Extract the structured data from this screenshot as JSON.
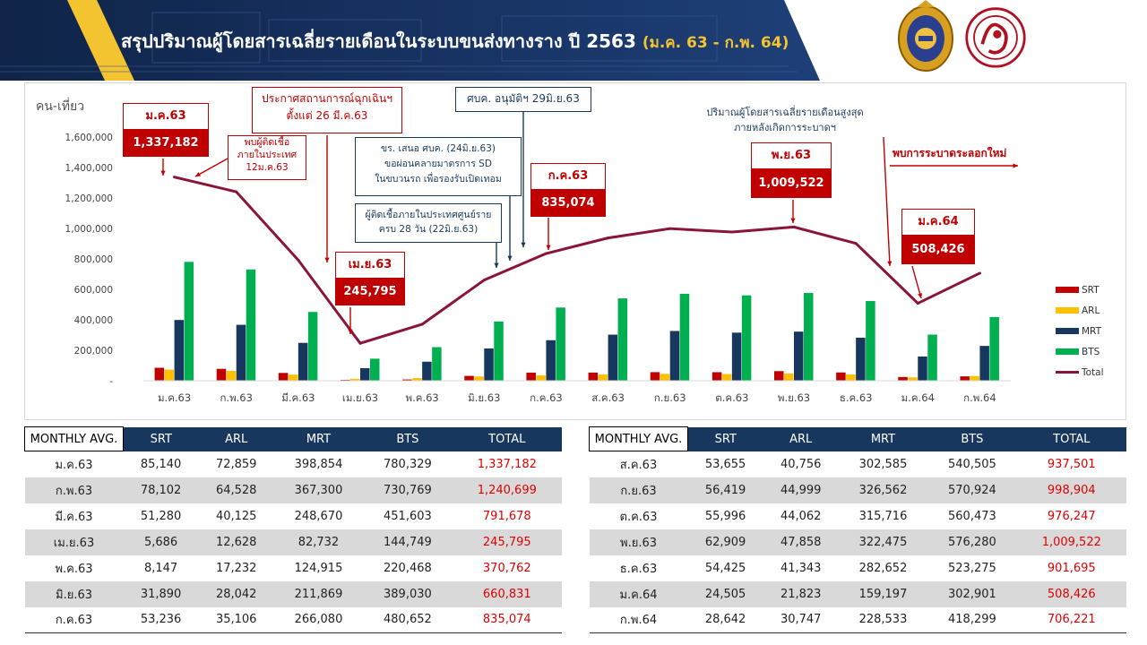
{
  "header": {
    "title": "สรุปปริมาณผู้โดยสารเฉลี่ยรายเดือนในระบบขนส่งทางราง ปี 2563",
    "subtitle": "(ม.ค. 63 - ก.พ. 64)",
    "logos": [
      "ministry-seal",
      "drt-seal"
    ]
  },
  "chart_data": {
    "type": "bar",
    "ylabel": "คน-เที่ยว",
    "ylim": [
      0,
      1600000
    ],
    "yticks": [
      "-",
      "200,000",
      "400,000",
      "600,000",
      "800,000",
      "1,000,000",
      "1,200,000",
      "1,400,000",
      "1,600,000"
    ],
    "categories": [
      "ม.ค.63",
      "ก.พ.63",
      "มี.ค.63",
      "เม.ย.63",
      "พ.ค.63",
      "มิ.ย.63",
      "ก.ค.63",
      "ส.ค.63",
      "ก.ย.63",
      "ต.ค.63",
      "พ.ย.63",
      "ธ.ค.63",
      "ม.ค.64",
      "ก.พ.64"
    ],
    "series": [
      {
        "name": "SRT",
        "color": "#c00000",
        "values": [
          85140,
          78102,
          51280,
          5686,
          8147,
          31890,
          53236,
          53655,
          56419,
          55996,
          62909,
          54425,
          24505,
          28642
        ]
      },
      {
        "name": "ARL",
        "color": "#ffc000",
        "values": [
          72859,
          64528,
          40125,
          12628,
          17232,
          28042,
          35106,
          40756,
          44999,
          44062,
          47858,
          41343,
          21823,
          30747
        ]
      },
      {
        "name": "MRT",
        "color": "#17375e",
        "values": [
          398854,
          367300,
          248670,
          82732,
          124915,
          211869,
          266080,
          302585,
          326562,
          315716,
          322475,
          282652,
          159197,
          228533
        ]
      },
      {
        "name": "BTS",
        "color": "#00b050",
        "values": [
          780329,
          730769,
          451603,
          144749,
          220468,
          389030,
          480652,
          540505,
          570924,
          560473,
          576280,
          523275,
          302901,
          418299
        ]
      },
      {
        "name": "Total",
        "color": "#8b1538",
        "type": "line",
        "values": [
          1337182,
          1240699,
          791678,
          245795,
          370762,
          660831,
          835074,
          937501,
          998904,
          976247,
          1009522,
          901695,
          508426,
          706221
        ]
      }
    ],
    "legend": "right",
    "callouts": [
      {
        "label": "ม.ค.63",
        "value": "1,337,182"
      },
      {
        "label": "เม.ย.63",
        "value": "245,795"
      },
      {
        "label": "ก.ค.63",
        "value": "835,074"
      },
      {
        "label": "พ.ย.63",
        "value": "1,009,522"
      },
      {
        "label": "ม.ค.64",
        "value": "508,426"
      }
    ],
    "notes": {
      "first_case": "พบผู้ติดเชื้อ\nภายในประเทศ\n12ม.ค.63",
      "emergency": "ประกาศสถานการณ์ฉุกเฉินฯ\nตั้งแต่ 26 มี.ค.63",
      "cabinet_ack": "ศบค. อนุมัติฯ 29มิ.ย.63",
      "sd_relax": "ขร. เสนอ ศบค. (24มิ.ย.63)\nขอผ่อนคลายมาตรการ SD\nในขบวนรถ เพื่อรองรับเปิดเทอม",
      "zero_cases": "ผู้ติดเชื้อภายในประเทศศูนย์ราย\nครบ 28 วัน (22มิ.ย.63)",
      "peak": "ปริมาณผู้โดยสารเฉลี่ยรายเดือนสูงสุด\nภายหลังเกิดการระบาดฯ",
      "new_wave": "พบการระบาดระลอกใหม่"
    }
  },
  "table_left": {
    "headers": [
      "MONTHLY AVG.",
      "SRT",
      "ARL",
      "MRT",
      "BTS",
      "TOTAL"
    ],
    "rows": [
      [
        "ม.ค.63",
        "85,140",
        "72,859",
        "398,854",
        "780,329",
        "1,337,182"
      ],
      [
        "ก.พ.63",
        "78,102",
        "64,528",
        "367,300",
        "730,769",
        "1,240,699"
      ],
      [
        "มี.ค.63",
        "51,280",
        "40,125",
        "248,670",
        "451,603",
        "791,678"
      ],
      [
        "เม.ย.63",
        "5,686",
        "12,628",
        "82,732",
        "144,749",
        "245,795"
      ],
      [
        "พ.ค.63",
        "8,147",
        "17,232",
        "124,915",
        "220,468",
        "370,762"
      ],
      [
        "มิ.ย.63",
        "31,890",
        "28,042",
        "211,869",
        "389,030",
        "660,831"
      ],
      [
        "ก.ค.63",
        "53,236",
        "35,106",
        "266,080",
        "480,652",
        "835,074"
      ]
    ]
  },
  "table_right": {
    "headers": [
      "MONTHLY AVG.",
      "SRT",
      "ARL",
      "MRT",
      "BTS",
      "TOTAL"
    ],
    "rows": [
      [
        "ส.ค.63",
        "53,655",
        "40,756",
        "302,585",
        "540,505",
        "937,501"
      ],
      [
        "ก.ย.63",
        "56,419",
        "44,999",
        "326,562",
        "570,924",
        "998,904"
      ],
      [
        "ต.ค.63",
        "55,996",
        "44,062",
        "315,716",
        "560,473",
        "976,247"
      ],
      [
        "พ.ย.63",
        "62,909",
        "47,858",
        "322,475",
        "576,280",
        "1,009,522"
      ],
      [
        "ธ.ค.63",
        "54,425",
        "41,343",
        "282,652",
        "523,275",
        "901,695"
      ],
      [
        "ม.ค.64",
        "24,505",
        "21,823",
        "159,197",
        "302,901",
        "508,426"
      ],
      [
        "ก.พ.64",
        "28,642",
        "30,747",
        "228,533",
        "418,299",
        "706,221"
      ]
    ]
  }
}
